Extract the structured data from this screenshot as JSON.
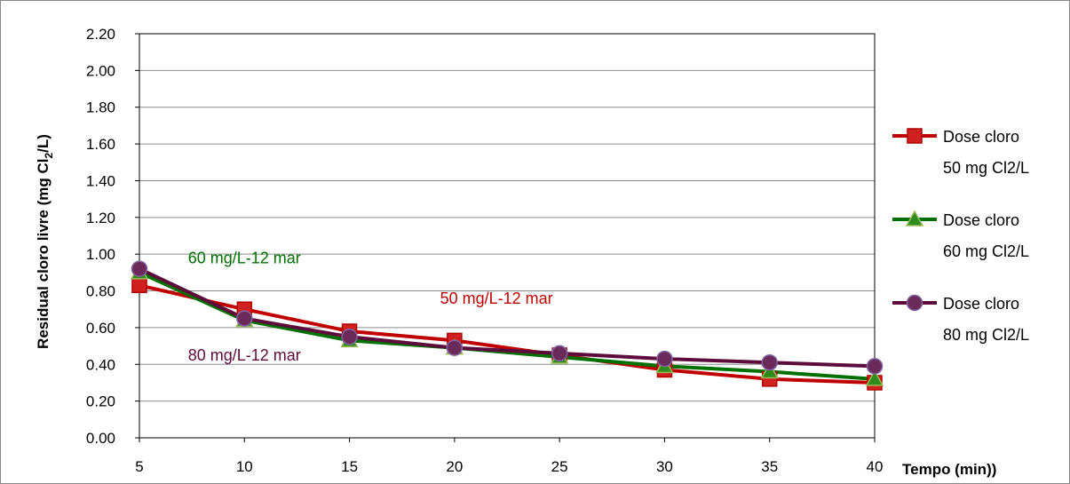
{
  "chart_data": {
    "type": "line",
    "x": [
      5,
      10,
      15,
      20,
      25,
      30,
      35,
      40
    ],
    "xlabel": "Tempo (min))",
    "ylabel_parts": {
      "main": "Residual cloro livre (mg Cl",
      "sub": "2",
      "tail": "/L)"
    },
    "ylim": [
      0,
      2.2
    ],
    "yticks": [
      "0.00",
      "0.20",
      "0.40",
      "0.60",
      "0.80",
      "1.00",
      "1.20",
      "1.40",
      "1.60",
      "1.80",
      "2.00",
      "2.20"
    ],
    "xticks": [
      "5",
      "10",
      "15",
      "20",
      "25",
      "30",
      "35",
      "40"
    ],
    "grid": true,
    "legend_position": "right",
    "series": [
      {
        "name_line1": "Dose cloro",
        "name_line2": "50 mg Cl2/L",
        "values": [
          0.83,
          0.7,
          0.58,
          0.53,
          0.45,
          0.37,
          0.32,
          0.3
        ],
        "color": "#C00000",
        "marker": "square",
        "marker_fill": "#D02020",
        "marker_stroke": "#B00000"
      },
      {
        "name_line1": "Dose cloro",
        "name_line2": "60 mg Cl2/L",
        "values": [
          0.9,
          0.64,
          0.53,
          0.49,
          0.44,
          0.39,
          0.36,
          0.32
        ],
        "color": "#007000",
        "marker": "triangle",
        "marker_fill": "#2E8B1E",
        "marker_stroke": "#9BBB59"
      },
      {
        "name_line1": "Dose cloro",
        "name_line2": "80 mg Cl2/L",
        "values": [
          0.92,
          0.65,
          0.55,
          0.49,
          0.46,
          0.43,
          0.41,
          0.39
        ],
        "color": "#5C0B3A",
        "marker": "circle",
        "marker_fill": "#6B2A5A",
        "marker_stroke": "#8064A2"
      }
    ],
    "annotations": [
      {
        "text": "60 mg/L-12 mar",
        "color": "#007000",
        "x": 10,
        "y": 0.95
      },
      {
        "text": "50 mg/L-12 mar",
        "color": "#C00000",
        "x": 22,
        "y": 0.73
      },
      {
        "text": "80 mg/L-12 mar",
        "color": "#5C0B3A",
        "x": 10,
        "y": 0.42
      }
    ]
  }
}
